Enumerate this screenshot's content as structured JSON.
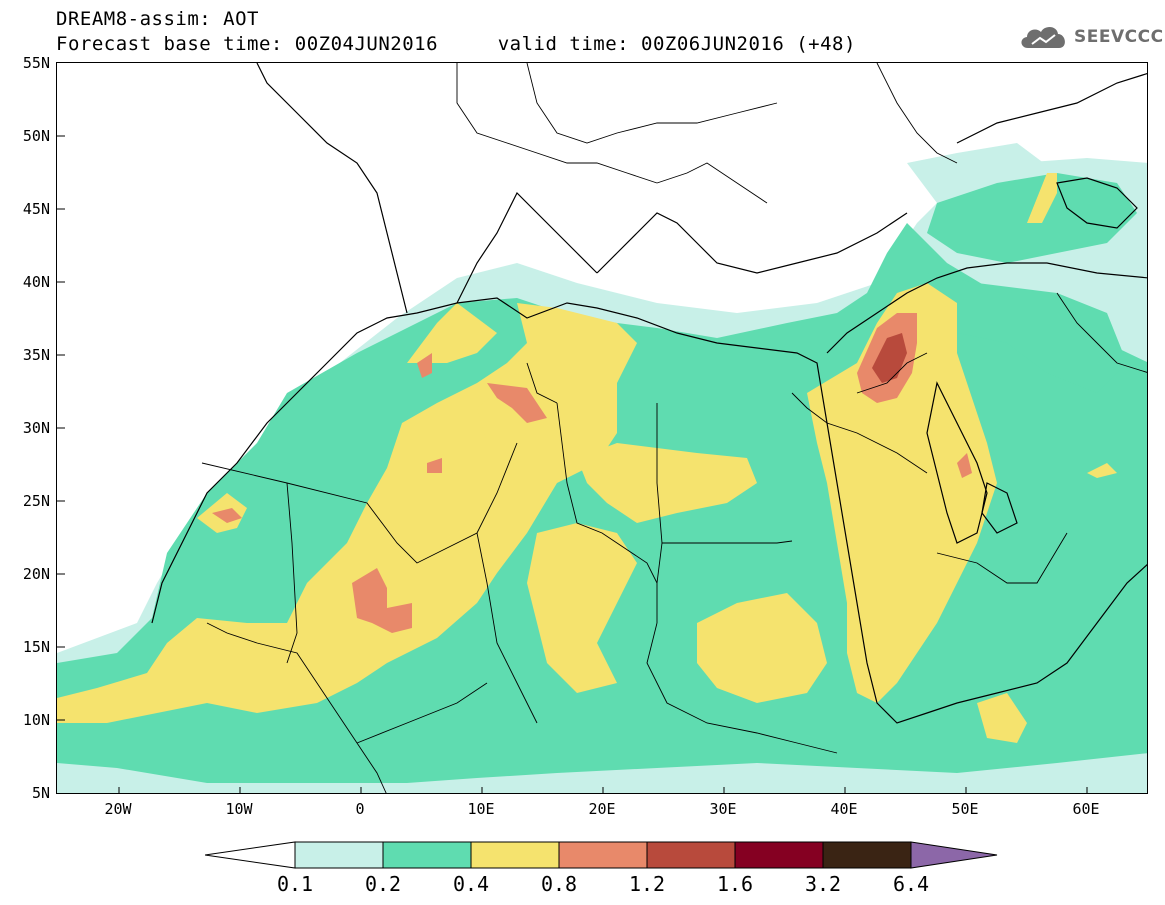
{
  "title_line1": "DREAM8-assim: AOT",
  "title_line2": "Forecast base time: 00Z04JUN2016     valid time: 00Z06JUN2016 (+48)",
  "logo_text": "SEEVCCC",
  "logo_icon": "cloud-icon",
  "lat_labels": [
    "55N",
    "50N",
    "45N",
    "40N",
    "35N",
    "30N",
    "25N",
    "20N",
    "15N",
    "10N",
    "5N"
  ],
  "lon_labels": [
    "20W",
    "10W",
    "0",
    "10E",
    "20E",
    "30E",
    "40E",
    "50E",
    "60E"
  ],
  "legend": {
    "labels": [
      "0.1",
      "0.2",
      "0.4",
      "0.8",
      "1.2",
      "1.6",
      "3.2",
      "6.4"
    ],
    "colors": [
      "#ffffff",
      "#c8f0e8",
      "#5fdcb0",
      "#f5e36e",
      "#e8896a",
      "#b84a3c",
      "#850022",
      "#3a2414",
      "#8c67a8"
    ]
  },
  "colors": {
    "c01": "#c8f0e8",
    "c02": "#5fdcb0",
    "c04": "#f5e36e",
    "c08": "#e8896a",
    "c12": "#b84a3c"
  }
}
